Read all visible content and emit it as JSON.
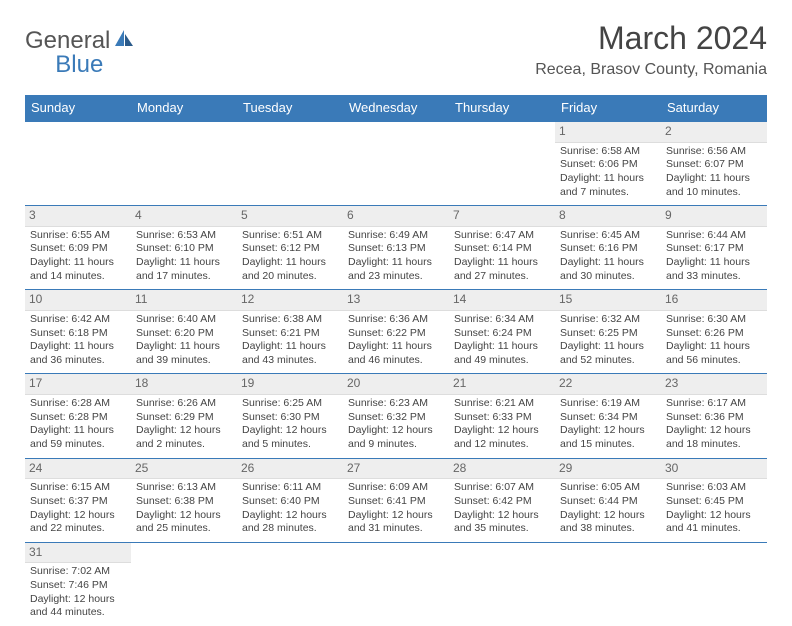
{
  "logo": {
    "main": "General",
    "sub": "Blue"
  },
  "title": "March 2024",
  "location": "Recea, Brasov County, Romania",
  "colors": {
    "header_bg": "#3a7ab8",
    "header_text": "#ffffff",
    "daynum_bg": "#eeeeee",
    "text": "#444444",
    "border": "#3a7ab8"
  },
  "weekdays": [
    "Sunday",
    "Monday",
    "Tuesday",
    "Wednesday",
    "Thursday",
    "Friday",
    "Saturday"
  ],
  "cells": [
    [
      null,
      null,
      null,
      null,
      null,
      {
        "n": "1",
        "sr": "6:58 AM",
        "ss": "6:06 PM",
        "dl": "11 hours and 7 minutes."
      },
      {
        "n": "2",
        "sr": "6:56 AM",
        "ss": "6:07 PM",
        "dl": "11 hours and 10 minutes."
      }
    ],
    [
      {
        "n": "3",
        "sr": "6:55 AM",
        "ss": "6:09 PM",
        "dl": "11 hours and 14 minutes."
      },
      {
        "n": "4",
        "sr": "6:53 AM",
        "ss": "6:10 PM",
        "dl": "11 hours and 17 minutes."
      },
      {
        "n": "5",
        "sr": "6:51 AM",
        "ss": "6:12 PM",
        "dl": "11 hours and 20 minutes."
      },
      {
        "n": "6",
        "sr": "6:49 AM",
        "ss": "6:13 PM",
        "dl": "11 hours and 23 minutes."
      },
      {
        "n": "7",
        "sr": "6:47 AM",
        "ss": "6:14 PM",
        "dl": "11 hours and 27 minutes."
      },
      {
        "n": "8",
        "sr": "6:45 AM",
        "ss": "6:16 PM",
        "dl": "11 hours and 30 minutes."
      },
      {
        "n": "9",
        "sr": "6:44 AM",
        "ss": "6:17 PM",
        "dl": "11 hours and 33 minutes."
      }
    ],
    [
      {
        "n": "10",
        "sr": "6:42 AM",
        "ss": "6:18 PM",
        "dl": "11 hours and 36 minutes."
      },
      {
        "n": "11",
        "sr": "6:40 AM",
        "ss": "6:20 PM",
        "dl": "11 hours and 39 minutes."
      },
      {
        "n": "12",
        "sr": "6:38 AM",
        "ss": "6:21 PM",
        "dl": "11 hours and 43 minutes."
      },
      {
        "n": "13",
        "sr": "6:36 AM",
        "ss": "6:22 PM",
        "dl": "11 hours and 46 minutes."
      },
      {
        "n": "14",
        "sr": "6:34 AM",
        "ss": "6:24 PM",
        "dl": "11 hours and 49 minutes."
      },
      {
        "n": "15",
        "sr": "6:32 AM",
        "ss": "6:25 PM",
        "dl": "11 hours and 52 minutes."
      },
      {
        "n": "16",
        "sr": "6:30 AM",
        "ss": "6:26 PM",
        "dl": "11 hours and 56 minutes."
      }
    ],
    [
      {
        "n": "17",
        "sr": "6:28 AM",
        "ss": "6:28 PM",
        "dl": "11 hours and 59 minutes."
      },
      {
        "n": "18",
        "sr": "6:26 AM",
        "ss": "6:29 PM",
        "dl": "12 hours and 2 minutes."
      },
      {
        "n": "19",
        "sr": "6:25 AM",
        "ss": "6:30 PM",
        "dl": "12 hours and 5 minutes."
      },
      {
        "n": "20",
        "sr": "6:23 AM",
        "ss": "6:32 PM",
        "dl": "12 hours and 9 minutes."
      },
      {
        "n": "21",
        "sr": "6:21 AM",
        "ss": "6:33 PM",
        "dl": "12 hours and 12 minutes."
      },
      {
        "n": "22",
        "sr": "6:19 AM",
        "ss": "6:34 PM",
        "dl": "12 hours and 15 minutes."
      },
      {
        "n": "23",
        "sr": "6:17 AM",
        "ss": "6:36 PM",
        "dl": "12 hours and 18 minutes."
      }
    ],
    [
      {
        "n": "24",
        "sr": "6:15 AM",
        "ss": "6:37 PM",
        "dl": "12 hours and 22 minutes."
      },
      {
        "n": "25",
        "sr": "6:13 AM",
        "ss": "6:38 PM",
        "dl": "12 hours and 25 minutes."
      },
      {
        "n": "26",
        "sr": "6:11 AM",
        "ss": "6:40 PM",
        "dl": "12 hours and 28 minutes."
      },
      {
        "n": "27",
        "sr": "6:09 AM",
        "ss": "6:41 PM",
        "dl": "12 hours and 31 minutes."
      },
      {
        "n": "28",
        "sr": "6:07 AM",
        "ss": "6:42 PM",
        "dl": "12 hours and 35 minutes."
      },
      {
        "n": "29",
        "sr": "6:05 AM",
        "ss": "6:44 PM",
        "dl": "12 hours and 38 minutes."
      },
      {
        "n": "30",
        "sr": "6:03 AM",
        "ss": "6:45 PM",
        "dl": "12 hours and 41 minutes."
      }
    ],
    [
      {
        "n": "31",
        "sr": "7:02 AM",
        "ss": "7:46 PM",
        "dl": "12 hours and 44 minutes."
      },
      null,
      null,
      null,
      null,
      null,
      null
    ]
  ],
  "labels": {
    "sunrise": "Sunrise:",
    "sunset": "Sunset:",
    "daylight": "Daylight:"
  }
}
